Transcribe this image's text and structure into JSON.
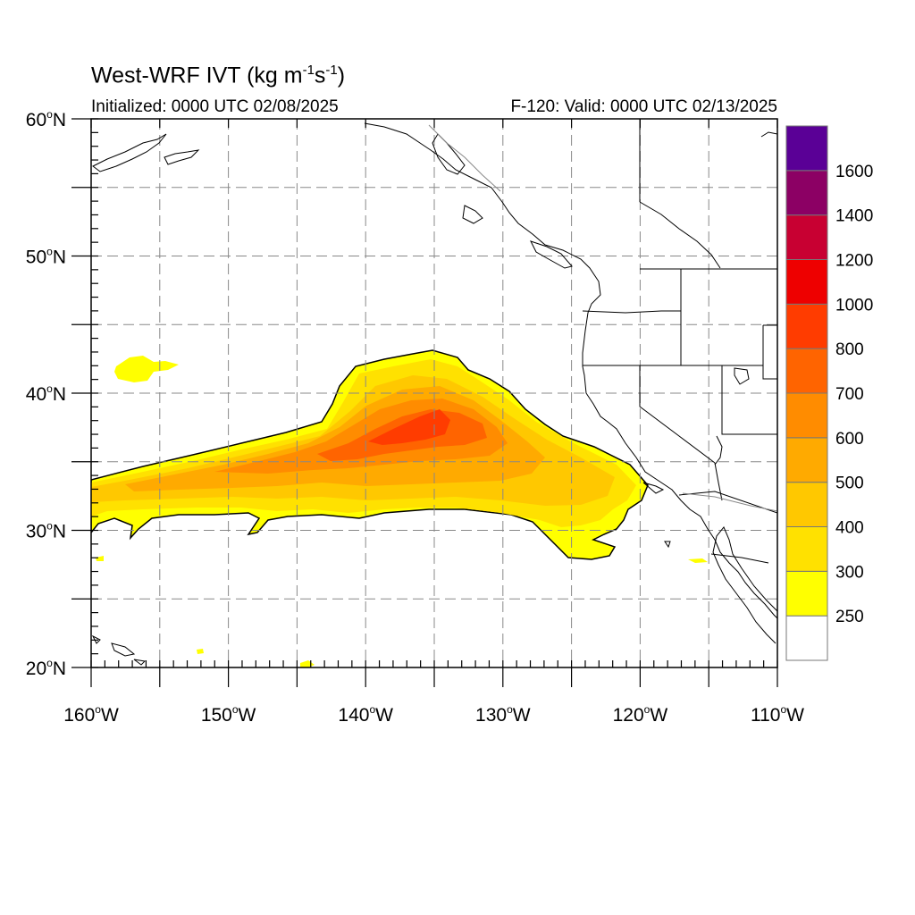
{
  "header": {
    "title_main": "West-WRF IVT (kg m",
    "title_sup1": "-1",
    "title_mid": "s",
    "title_sup2": "-1",
    "title_end": ")",
    "initialized": "Initialized: 0000 UTC 02/08/2025",
    "valid": "F-120: Valid: 0000 UTC 02/13/2025"
  },
  "map_data": {
    "type": "map",
    "projection": "cylindrical equidistant",
    "lon_range": [
      -160,
      -110
    ],
    "lat_range": [
      20,
      60
    ],
    "grid": true,
    "lat_ticks": [
      {
        "value": 60,
        "label": "60"
      },
      {
        "value": 50,
        "label": "50"
      },
      {
        "value": 40,
        "label": "40"
      },
      {
        "value": 30,
        "label": "30"
      },
      {
        "value": 20,
        "label": "20"
      }
    ],
    "lat_suffix": "N",
    "lon_ticks": [
      {
        "value": -160,
        "label": "160"
      },
      {
        "value": -150,
        "label": "150"
      },
      {
        "value": -140,
        "label": "140"
      },
      {
        "value": -130,
        "label": "130"
      },
      {
        "value": -120,
        "label": "120"
      },
      {
        "value": -110,
        "label": "110"
      }
    ],
    "lon_suffix": "W",
    "degree_symbol": "o"
  },
  "colorbar": {
    "placement": "right",
    "levels": [
      {
        "label": "",
        "color": "#ffffff"
      },
      {
        "label": "250",
        "color": "#ffff00"
      },
      {
        "label": "300",
        "color": "#ffe100"
      },
      {
        "label": "400",
        "color": "#ffc800"
      },
      {
        "label": "500",
        "color": "#ffaa00"
      },
      {
        "label": "600",
        "color": "#ff8c00"
      },
      {
        "label": "700",
        "color": "#ff6400"
      },
      {
        "label": "800",
        "color": "#ff3c00"
      },
      {
        "label": "1000",
        "color": "#ee0000"
      },
      {
        "label": "1200",
        "color": "#c80032"
      },
      {
        "label": "1400",
        "color": "#8c0064"
      },
      {
        "label": "1600",
        "color": "#5a0096"
      }
    ]
  }
}
